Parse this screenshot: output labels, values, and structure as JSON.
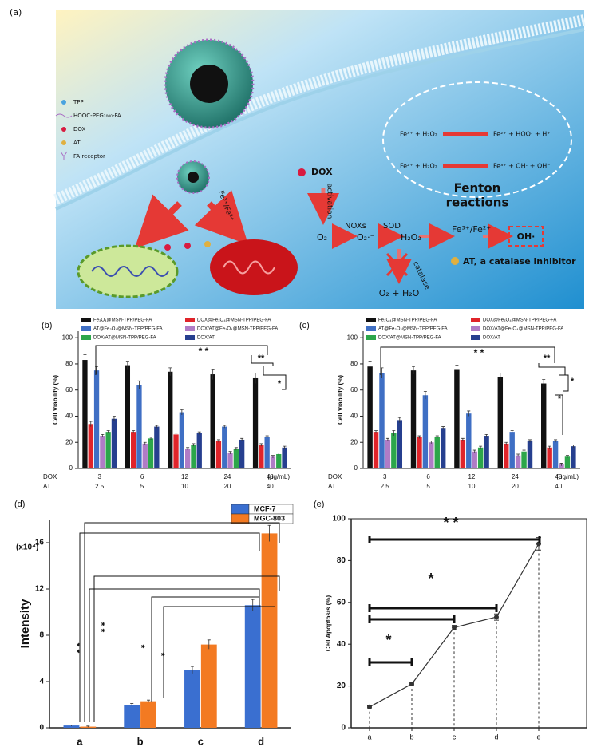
{
  "diagram": {
    "label": "(a)",
    "legend": [
      "TPP",
      "HOOC-PEG₂₀₀₀-FA",
      "DOX",
      "AT",
      "FA receptor"
    ],
    "dox": "DOX",
    "activation": "activation",
    "nox": "NOXs",
    "o2": "O₂",
    "superoxide": "O₂·⁻",
    "sod": "SOD",
    "h2o2": "H₂O₂",
    "iron": "Fe³⁺/Fe²⁺",
    "oh": "OH·",
    "catalase": "catalase",
    "inhibitor": "AT, a catalase inhibitor",
    "products": "O₂ + H₂O",
    "fenton": [
      "Fenton",
      "reactions"
    ],
    "reactions": [
      {
        "left": "Fe³⁺ + H₂O₂",
        "right": "Fe²⁺ + HOO· + H⁺"
      },
      {
        "left": "Fe²⁺ + H₂O₂",
        "right": "Fe³⁺ + OH· + OH⁻"
      }
    ],
    "cell_iron": "Fe³⁺/Fe²⁺"
  },
  "chart_data": [
    {
      "type": "bar",
      "panel": "(b)",
      "ylabel": "Cell Viability (%)",
      "row_labels": [
        "DOX",
        "AT"
      ],
      "categories": [
        "3",
        "6",
        "12",
        "24",
        "48"
      ],
      "categories2": [
        "2.5",
        "5",
        "10",
        "20",
        "40"
      ],
      "unit": "(μg/mL)",
      "ylim": [
        0,
        105
      ],
      "yticks": [
        0,
        20,
        40,
        60,
        80,
        100
      ],
      "series": [
        {
          "name": "Fe₃O₄@MSN-TPP/PEG-FA",
          "color": "#111111",
          "values": [
            83,
            79,
            74,
            72,
            69
          ],
          "errors": [
            4,
            3,
            3,
            4,
            4
          ]
        },
        {
          "name": "DOX@Fe₃O₄@MSN-TPP/PEG-FA",
          "color": "#e0242a",
          "values": [
            34,
            28,
            26,
            21,
            18
          ],
          "errors": [
            2,
            1,
            1,
            1,
            1
          ]
        },
        {
          "name": "AT@Fe₃O₄@MSN-TPP/PEG-FA",
          "color": "#3f6fc4",
          "values": [
            75,
            64,
            43,
            32,
            24
          ],
          "errors": [
            3,
            3,
            2,
            1,
            1
          ]
        },
        {
          "name": "DOX/AT@Fe₃O₄@MSN-TPP/PEG-FA",
          "color": "#b07cc6",
          "values": [
            25,
            19,
            15,
            12,
            9
          ],
          "errors": [
            1,
            1,
            1,
            1,
            1
          ]
        },
        {
          "name": "DOX/AT@MSN-TPP/PEG-FA",
          "color": "#2ca64a",
          "values": [
            28,
            23,
            18,
            15,
            11
          ],
          "errors": [
            1,
            1,
            1,
            1,
            1
          ]
        },
        {
          "name": "DOX/AT",
          "color": "#263f8f",
          "values": [
            38,
            32,
            27,
            22,
            16
          ],
          "errors": [
            2,
            1,
            1,
            1,
            1
          ]
        }
      ],
      "annotations": [
        "* *",
        "**",
        "*"
      ]
    },
    {
      "type": "bar",
      "panel": "(c)",
      "ylabel": "Cell Viability (%)",
      "row_labels": [
        "DOX",
        "AT"
      ],
      "categories": [
        "3",
        "6",
        "12",
        "24",
        "48"
      ],
      "categories2": [
        "2.5",
        "5",
        "10",
        "20",
        "40"
      ],
      "unit": "(μg/mL)",
      "ylim": [
        0,
        105
      ],
      "yticks": [
        0,
        20,
        40,
        60,
        80,
        100
      ],
      "series": [
        {
          "name": "Fe₃O₄@MSN-TPP/PEG-FA",
          "color": "#111111",
          "values": [
            78,
            75,
            76,
            70,
            65
          ],
          "errors": [
            4,
            3,
            3,
            3,
            3
          ]
        },
        {
          "name": "DOX@Fe₃O₄@MSN-TPP/PEG-FA",
          "color": "#e0242a",
          "values": [
            28,
            24,
            22,
            19,
            16
          ],
          "errors": [
            1,
            1,
            1,
            1,
            1
          ]
        },
        {
          "name": "AT@Fe₃O₄@MSN-TPP/PEG-FA",
          "color": "#3f6fc4",
          "values": [
            73,
            56,
            42,
            28,
            21
          ],
          "errors": [
            4,
            3,
            2,
            1,
            1
          ]
        },
        {
          "name": "DOX/AT@Fe₃O₄@MSN-TPP/PEG-FA",
          "color": "#b07cc6",
          "values": [
            22,
            20,
            13,
            10,
            3
          ],
          "errors": [
            1,
            1,
            1,
            1,
            1
          ]
        },
        {
          "name": "DOX/AT@MSN-TPP/PEG-FA",
          "color": "#2ca64a",
          "values": [
            27,
            24,
            16,
            13,
            9
          ],
          "errors": [
            2,
            1,
            1,
            1,
            1
          ]
        },
        {
          "name": "DOX/AT",
          "color": "#263f8f",
          "values": [
            37,
            31,
            25,
            21,
            17
          ],
          "errors": [
            2,
            1,
            1,
            1,
            1
          ]
        }
      ],
      "annotations": [
        "* *",
        "**",
        "*",
        "*"
      ]
    },
    {
      "type": "bar",
      "panel": "(d)",
      "ylabel": "Intensity",
      "scale_label": "(x10⁴)",
      "categories": [
        "a",
        "b",
        "c",
        "d"
      ],
      "ylim": [
        0,
        18
      ],
      "yticks": [
        0,
        4,
        8,
        12,
        16
      ],
      "series": [
        {
          "name": "MCF-7",
          "color": "#3a6fd0",
          "values": [
            0.2,
            2.0,
            5.0,
            10.6
          ],
          "errors": [
            0.05,
            0.1,
            0.3,
            0.5
          ]
        },
        {
          "name": "MGC-803",
          "color": "#f37a22",
          "values": [
            0.1,
            2.3,
            7.2,
            16.8
          ],
          "errors": [
            0.05,
            0.1,
            0.4,
            0.7
          ]
        }
      ],
      "annotations": [
        "* *",
        "* *",
        "*",
        "*"
      ]
    },
    {
      "type": "line",
      "panel": "(e)",
      "ylabel": "Cell Apoptosis (%)",
      "categories": [
        "a",
        "b",
        "c",
        "d",
        "e"
      ],
      "ylim": [
        0,
        100
      ],
      "yticks": [
        0,
        20,
        40,
        60,
        80,
        100
      ],
      "color": "#333333",
      "values": [
        10,
        21,
        48,
        53,
        88
      ],
      "errors": [
        0.5,
        0.5,
        1,
        1.5,
        3
      ],
      "annotations": [
        "*",
        "*",
        "* *"
      ]
    }
  ]
}
